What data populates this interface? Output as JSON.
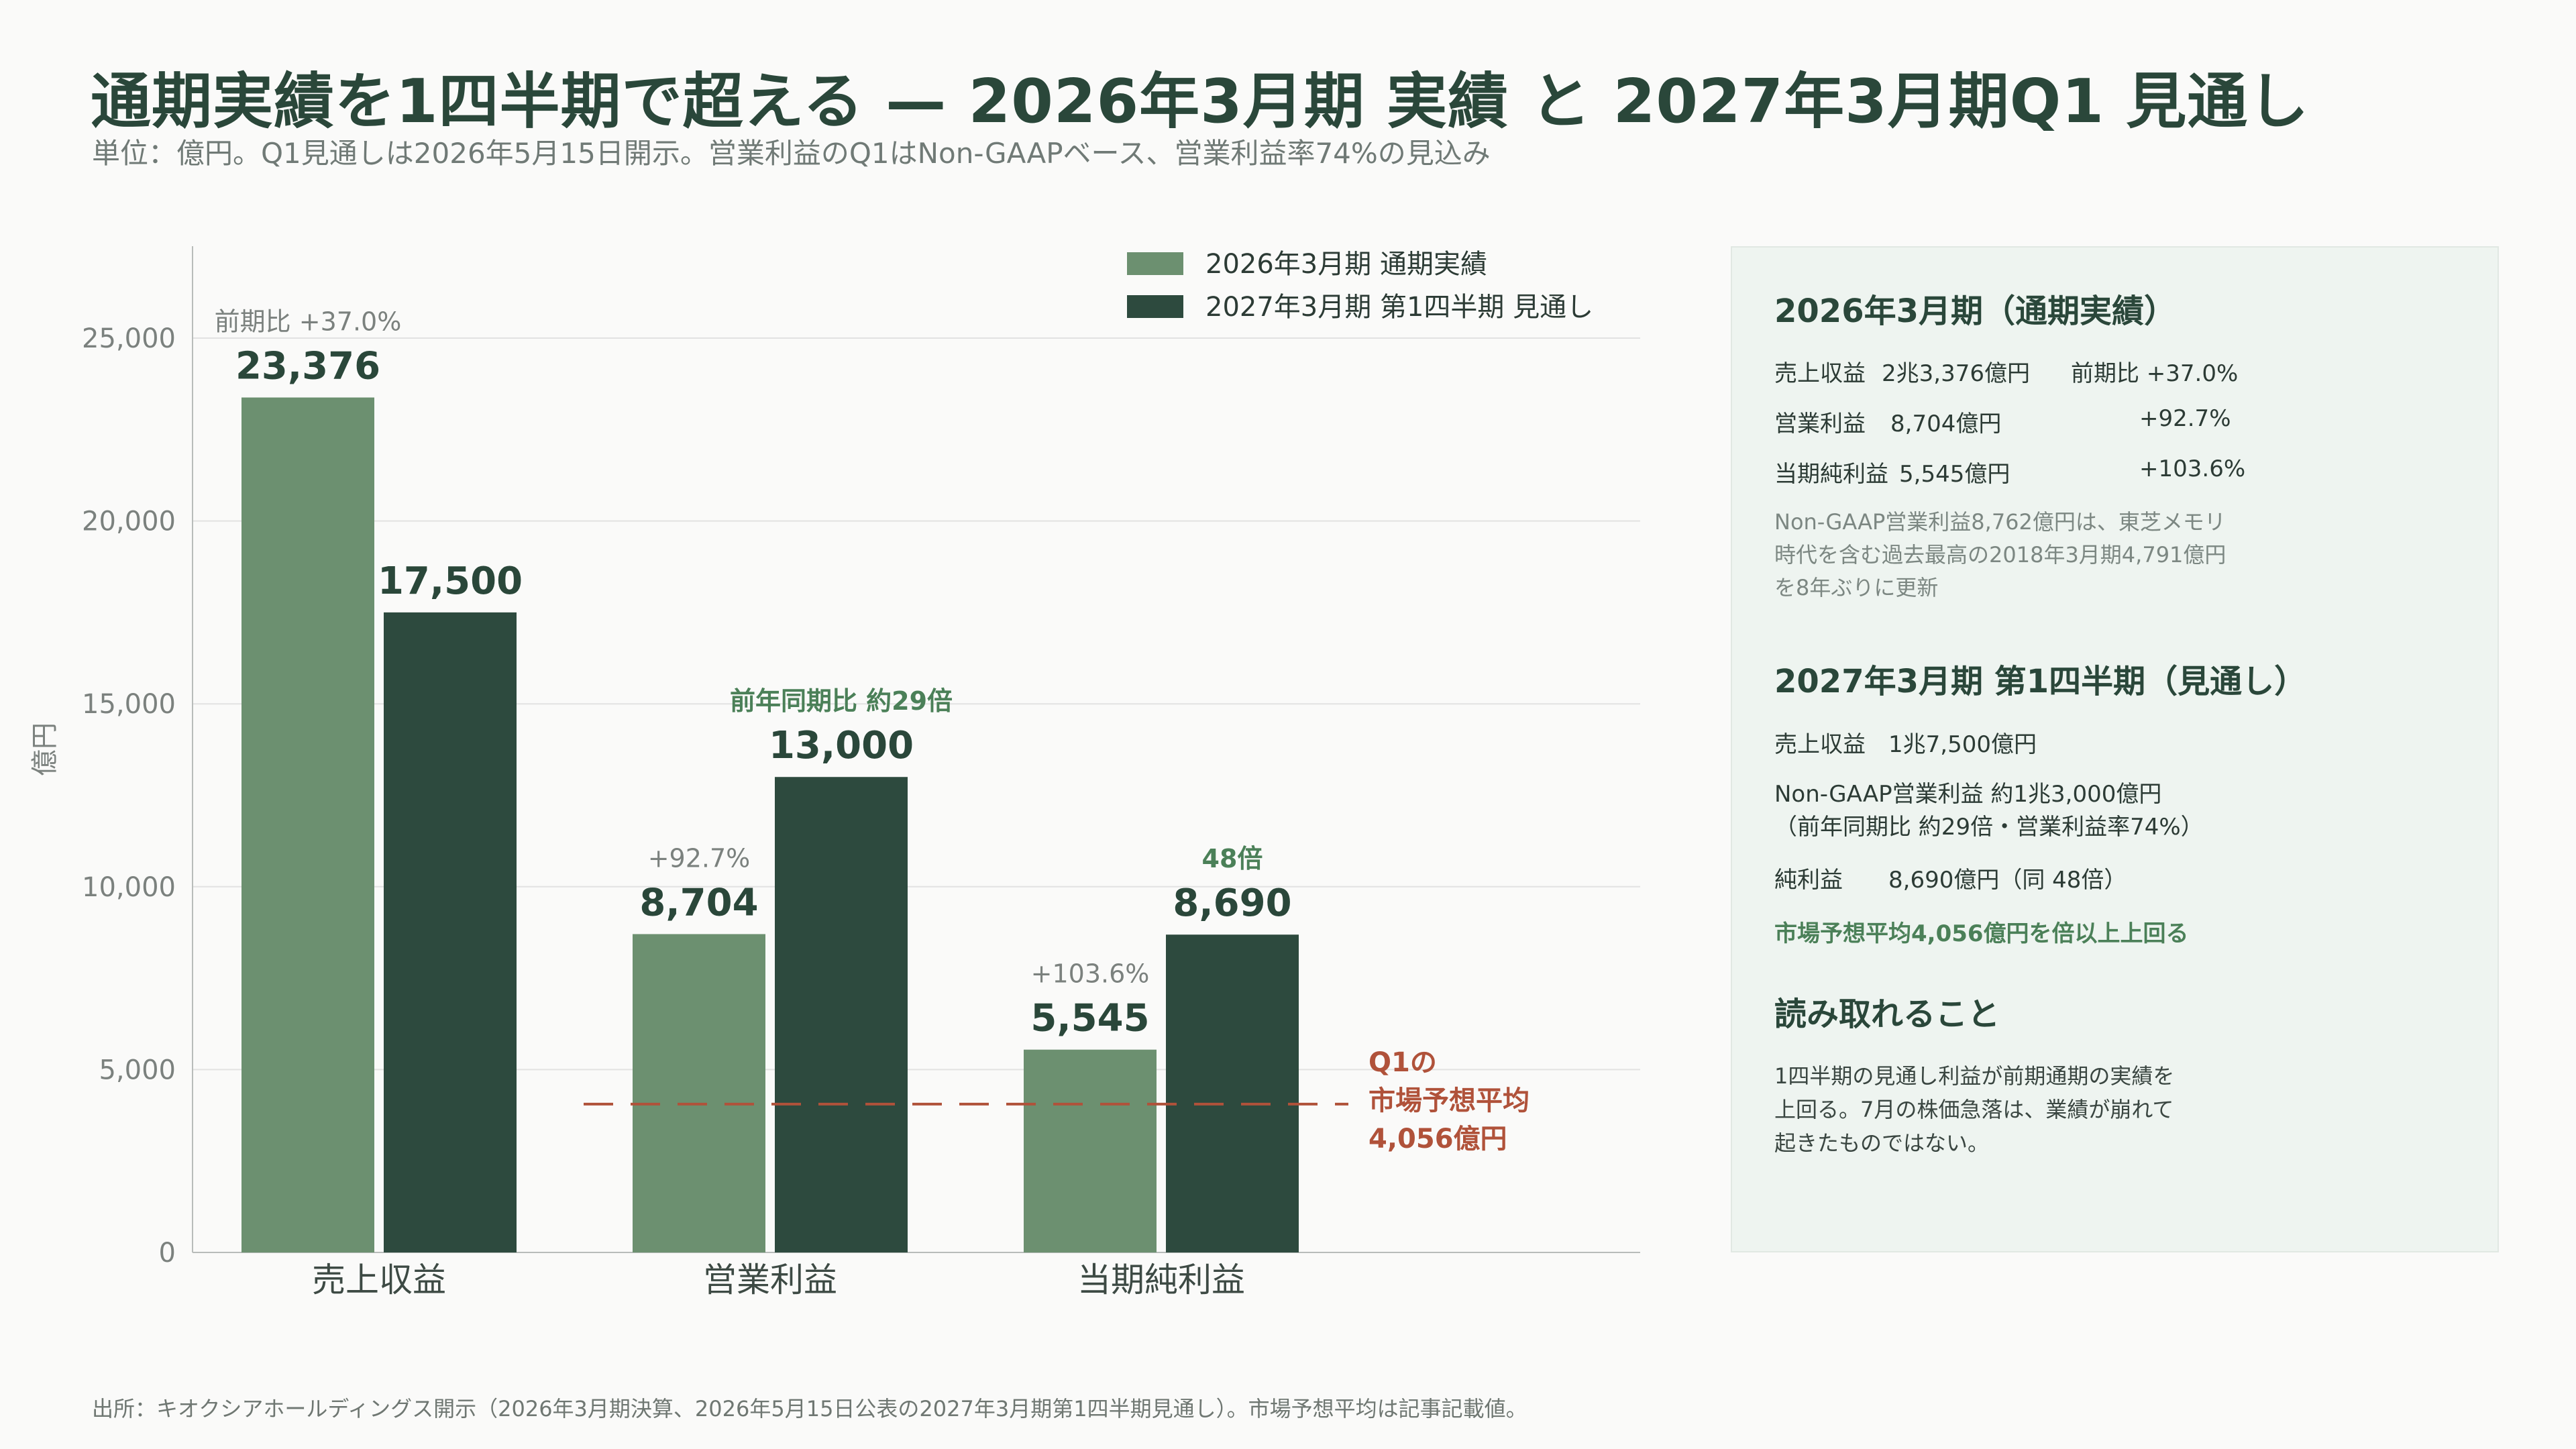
{
  "title": "通期実績を1四半期で超える — 2026年3月期 実績 と 2027年3月期Q1 見通し",
  "subtitle": "単位：億円。Q1見通しは2026年5月15日開示。営業利益のQ1はNon-GAAPベース、営業利益率74%の見込み",
  "colors": {
    "actual": "#6c9070",
    "outlook": "#2d4a3e",
    "market": "#b0523a",
    "grid": "#e2e2e2",
    "highlight": "#4b8058"
  },
  "chart_data": {
    "type": "bar",
    "ylabel": "億円",
    "ylim": [
      0,
      27500
    ],
    "yticks": [
      "0",
      "5,000",
      "10,000",
      "15,000",
      "20,000",
      "25,000"
    ],
    "ytick_values": [
      0,
      5000,
      10000,
      15000,
      20000,
      25000
    ],
    "categories": [
      "売上収益",
      "営業利益",
      "当期純利益"
    ],
    "series": [
      {
        "name": "2026年3月期 通期実績",
        "values": [
          23376,
          8704,
          5545
        ],
        "labels": [
          "23,376",
          "8,704",
          "5,545"
        ],
        "annotations": [
          "前期比 +37.0%",
          "+92.7%",
          "+103.6%"
        ]
      },
      {
        "name": "2027年3月期 第1四半期 見通し",
        "values": [
          17500,
          13000,
          8690
        ],
        "labels": [
          "17,500",
          "13,000",
          "8,690"
        ],
        "annotations": [
          "",
          "前年同期比 約29倍",
          "48倍"
        ]
      }
    ],
    "reference_line": {
      "value": 4056,
      "label_lines": [
        "Q1の",
        "市場予想平均",
        "4,056億円"
      ]
    },
    "grid": true,
    "legend": "top-right"
  },
  "side": {
    "h1": "2026年3月期（通期実績）",
    "rows": [
      {
        "name": "売上収益",
        "value": "2兆3,376億円",
        "change": "前期比 +37.0%"
      },
      {
        "name": "営業利益",
        "value": "8,704億円",
        "change": "+92.7%"
      },
      {
        "name": "当期純利益",
        "value": "5,545億円",
        "change": "+103.6%"
      }
    ],
    "note": [
      "Non-GAAP営業利益8,762億円は、東芝メモリ",
      "時代を含む過去最高の2018年3月期4,791億円",
      "を8年ぶりに更新"
    ],
    "h2": "2027年3月期 第1四半期（見通し）",
    "q_sales": "売上収益　1兆7,500億円",
    "q_op1": "Non-GAAP営業利益 約1兆3,000億円",
    "q_op2": "（前年同期比 約29倍・営業利益率74%）",
    "q_net": "純利益　　8,690億円（同 48倍）",
    "highlight": "市場予想平均4,056億円を倍以上上回る",
    "h3": "読み取れること",
    "para": [
      "1四半期の見通し利益が前期通期の実績を",
      "上回る。7月の株価急落は、業績が崩れて",
      "起きたものではない。"
    ]
  },
  "footer": "出所：キオクシアホールディングス開示（2026年3月期決算、2026年5月15日公表の2027年3月期第1四半期見通し）。市場予想平均は記事記載値。"
}
